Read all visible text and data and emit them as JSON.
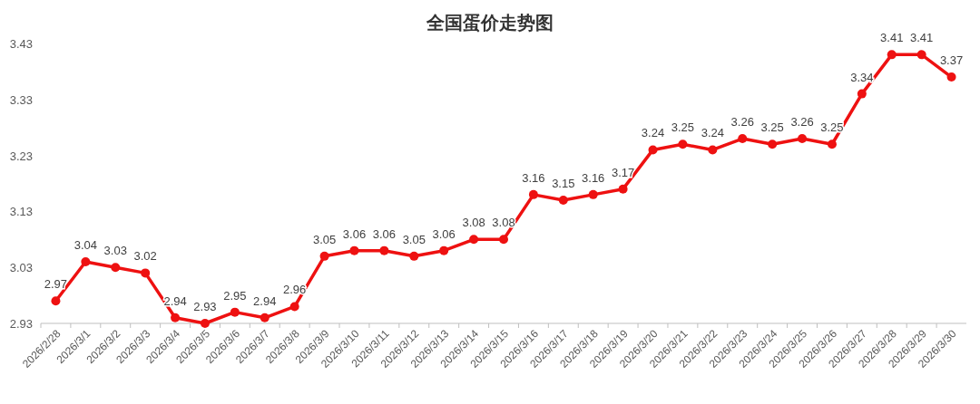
{
  "chart_data": {
    "type": "line",
    "title": "全国蛋价走势图",
    "categories": [
      "2026/2/28",
      "2026/3/1",
      "2026/3/2",
      "2026/3/3",
      "2026/3/4",
      "2026/3/5",
      "2026/3/6",
      "2026/3/7",
      "2026/3/8",
      "2026/3/9",
      "2026/3/10",
      "2026/3/11",
      "2026/3/12",
      "2026/3/13",
      "2026/3/14",
      "2026/3/15",
      "2026/3/16",
      "2026/3/17",
      "2026/3/18",
      "2026/3/19",
      "2026/3/20",
      "2026/3/21",
      "2026/3/22",
      "2026/3/23",
      "2026/3/24",
      "2026/3/25",
      "2026/3/26",
      "2026/3/27",
      "2026/3/28",
      "2026/3/29",
      "2026/3/30"
    ],
    "series": [
      {
        "color": "#ee1111",
        "values": [
          2.97,
          3.04,
          3.03,
          3.02,
          2.94,
          2.93,
          2.95,
          2.94,
          2.96,
          3.05,
          3.06,
          3.06,
          3.05,
          3.06,
          3.08,
          3.08,
          3.16,
          3.15,
          3.16,
          3.17,
          3.24,
          3.25,
          3.24,
          3.26,
          3.25,
          3.26,
          3.25,
          3.34,
          3.41,
          3.41,
          3.37
        ]
      }
    ],
    "ylim": [
      2.93,
      3.43
    ],
    "yticks": [
      2.93,
      3.03,
      3.13,
      3.23,
      3.33,
      3.43
    ],
    "data_labels": true,
    "marker": "circle",
    "line_style": "solid",
    "grid": false
  }
}
